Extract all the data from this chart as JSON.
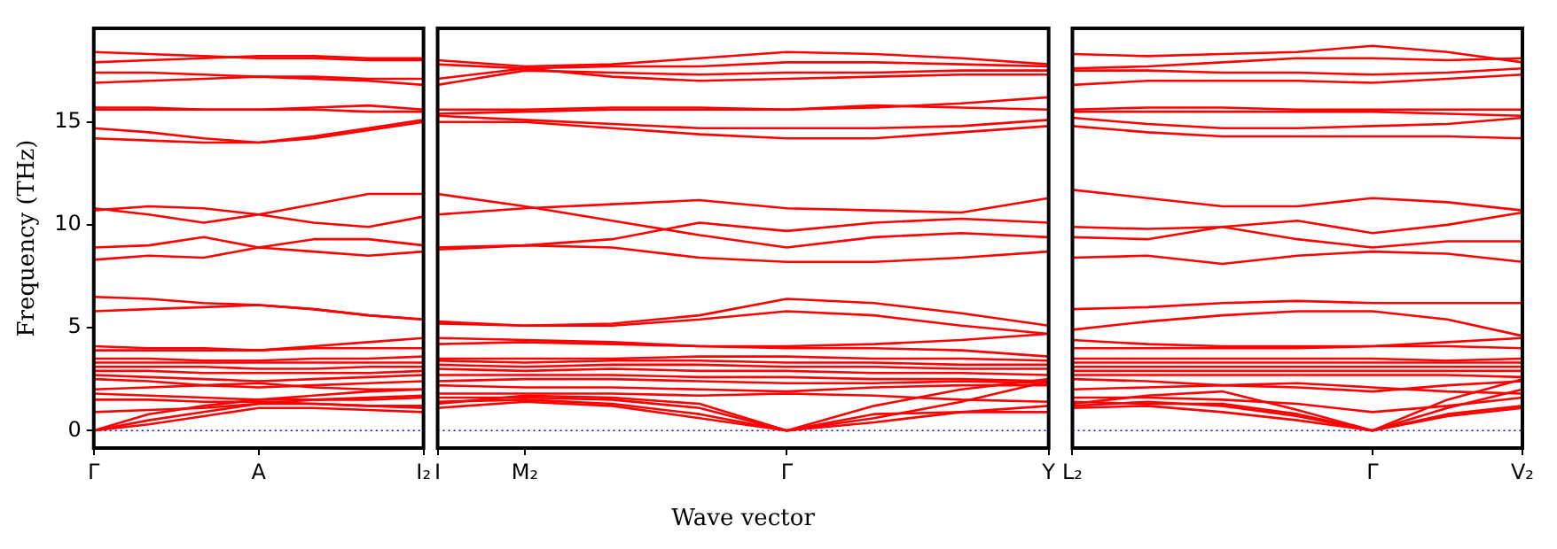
{
  "chart_data": [
    {
      "type": "line",
      "ylabel": "Frequency (THz)",
      "categories": [
        "Γ",
        null,
        null,
        "A",
        null,
        null,
        "I₂"
      ],
      "ylim": [
        -0.85,
        19.55
      ],
      "yticks": [
        0,
        5,
        10,
        15
      ],
      "grid": false,
      "color": "#ff0000",
      "line_style": "solid",
      "ref_lines": [
        {
          "axis": "y",
          "value": 0,
          "color": "#0000ff",
          "line_style": "dotted"
        }
      ],
      "series": [
        {
          "values": [
            18.4,
            18.3,
            18.2,
            18.1,
            18.1,
            18.0,
            18.0
          ]
        },
        {
          "values": [
            17.9,
            18.0,
            18.1,
            18.2,
            18.2,
            18.1,
            18.1
          ]
        },
        {
          "values": [
            17.4,
            17.4,
            17.3,
            17.2,
            17.2,
            17.1,
            17.1
          ]
        },
        {
          "values": [
            16.9,
            17.0,
            17.1,
            17.2,
            17.1,
            17.0,
            16.8
          ]
        },
        {
          "values": [
            15.7,
            15.7,
            15.6,
            15.6,
            15.7,
            15.8,
            15.6
          ]
        },
        {
          "values": [
            15.6,
            15.6,
            15.6,
            15.6,
            15.6,
            15.5,
            15.5
          ]
        },
        {
          "values": [
            14.7,
            14.5,
            14.2,
            14.0,
            14.3,
            14.7,
            15.1
          ]
        },
        {
          "values": [
            14.2,
            14.1,
            14.0,
            14.0,
            14.2,
            14.6,
            15.0
          ]
        },
        {
          "values": [
            10.8,
            10.5,
            10.1,
            10.5,
            11.0,
            11.5,
            11.5
          ]
        },
        {
          "values": [
            10.7,
            10.9,
            10.8,
            10.5,
            10.1,
            9.9,
            10.4
          ]
        },
        {
          "values": [
            8.9,
            9.0,
            9.4,
            8.9,
            9.3,
            9.3,
            9.0
          ]
        },
        {
          "values": [
            8.3,
            8.5,
            8.4,
            8.9,
            8.7,
            8.5,
            8.7
          ]
        },
        {
          "values": [
            6.5,
            6.4,
            6.2,
            6.1,
            5.9,
            5.6,
            5.4
          ]
        },
        {
          "values": [
            5.8,
            5.9,
            6.0,
            6.1,
            5.9,
            5.6,
            5.4
          ]
        },
        {
          "values": [
            4.1,
            4.0,
            4.0,
            3.9,
            4.1,
            4.3,
            4.5
          ]
        },
        {
          "values": [
            3.9,
            3.9,
            3.9,
            3.9,
            4.0,
            4.0,
            4.0
          ]
        },
        {
          "values": [
            3.5,
            3.5,
            3.4,
            3.4,
            3.5,
            3.5,
            3.6
          ]
        },
        {
          "values": [
            3.3,
            3.3,
            3.3,
            3.3,
            3.3,
            3.3,
            3.3
          ]
        },
        {
          "values": [
            3.1,
            3.1,
            3.1,
            3.0,
            3.0,
            3.1,
            3.1
          ]
        },
        {
          "values": [
            2.9,
            2.9,
            2.8,
            2.8,
            2.8,
            2.8,
            2.9
          ]
        },
        {
          "values": [
            2.7,
            2.6,
            2.5,
            2.4,
            2.5,
            2.6,
            2.7
          ]
        },
        {
          "values": [
            2.5,
            2.4,
            2.2,
            2.1,
            2.2,
            2.3,
            2.4
          ]
        },
        {
          "values": [
            2.0,
            2.1,
            2.2,
            2.3,
            2.1,
            2.0,
            2.0
          ]
        },
        {
          "values": [
            1.8,
            1.7,
            1.6,
            1.5,
            1.5,
            1.5,
            1.6
          ]
        },
        {
          "values": [
            1.5,
            1.5,
            1.4,
            1.4,
            1.3,
            1.2,
            1.2
          ]
        },
        {
          "values": [
            0.9,
            1.0,
            1.1,
            1.3,
            1.5,
            1.6,
            1.7
          ]
        },
        {
          "values": [
            0,
            0.8,
            1.2,
            1.5,
            1.7,
            1.9,
            2.0
          ]
        },
        {
          "values": [
            0,
            0.5,
            0.9,
            1.3,
            1.3,
            1.2,
            1.1
          ]
        },
        {
          "values": [
            0,
            0.3,
            0.7,
            1.1,
            1.1,
            1.0,
            0.9
          ]
        }
      ]
    },
    {
      "type": "line",
      "xlabel": "Wave vector",
      "categories": [
        "I",
        "M₂",
        null,
        null,
        "Γ",
        null,
        null,
        "Y"
      ],
      "ylim": [
        -0.85,
        19.55
      ],
      "yticks": [
        0,
        5,
        10,
        15
      ],
      "tick_labels": "x",
      "grid": false,
      "color": "#ff0000",
      "line_style": "solid",
      "ref_lines": [
        {
          "axis": "y",
          "value": 0,
          "color": "#0000ff",
          "line_style": "dotted"
        }
      ],
      "series": [
        {
          "values": [
            18.0,
            17.7,
            17.8,
            18.1,
            18.4,
            18.3,
            18.1,
            17.8
          ]
        },
        {
          "values": [
            17.8,
            17.6,
            17.7,
            17.7,
            17.9,
            17.9,
            17.8,
            17.7
          ]
        },
        {
          "values": [
            16.8,
            17.5,
            17.4,
            17.3,
            17.4,
            17.4,
            17.5,
            17.5
          ]
        },
        {
          "values": [
            17.1,
            17.6,
            17.2,
            17.0,
            17.1,
            17.2,
            17.3,
            17.3
          ]
        },
        {
          "values": [
            15.6,
            15.6,
            15.7,
            15.7,
            15.6,
            15.7,
            15.9,
            16.2
          ]
        },
        {
          "values": [
            15.4,
            15.5,
            15.6,
            15.6,
            15.6,
            15.8,
            15.7,
            15.6
          ]
        },
        {
          "values": [
            15.3,
            15.1,
            14.9,
            14.7,
            14.7,
            14.7,
            14.8,
            15.1
          ]
        },
        {
          "values": [
            15.0,
            15.0,
            14.7,
            14.4,
            14.2,
            14.2,
            14.5,
            14.8
          ]
        },
        {
          "values": [
            11.5,
            10.9,
            10.2,
            9.5,
            8.9,
            9.4,
            9.6,
            9.4
          ]
        },
        {
          "values": [
            10.5,
            10.8,
            11.0,
            11.2,
            10.8,
            10.7,
            10.6,
            11.3
          ]
        },
        {
          "values": [
            8.9,
            9.0,
            9.3,
            10.1,
            9.7,
            10.1,
            10.3,
            10.1
          ]
        },
        {
          "values": [
            8.8,
            9.0,
            8.9,
            8.4,
            8.2,
            8.2,
            8.4,
            8.7
          ]
        },
        {
          "values": [
            5.3,
            5.1,
            5.2,
            5.6,
            6.4,
            6.2,
            5.7,
            5.1
          ]
        },
        {
          "values": [
            5.2,
            5.1,
            5.1,
            5.4,
            5.8,
            5.6,
            5.1,
            4.7
          ]
        },
        {
          "values": [
            4.5,
            4.4,
            4.3,
            4.1,
            4.1,
            4.2,
            4.4,
            4.7
          ]
        },
        {
          "values": [
            4.2,
            4.3,
            4.2,
            4.1,
            4.0,
            4.0,
            3.9,
            3.6
          ]
        },
        {
          "values": [
            3.5,
            3.5,
            3.5,
            3.6,
            3.6,
            3.5,
            3.5,
            3.4
          ]
        },
        {
          "values": [
            3.4,
            3.3,
            3.4,
            3.4,
            3.3,
            3.3,
            3.2,
            3.2
          ]
        },
        {
          "values": [
            3.2,
            3.1,
            3.2,
            3.2,
            3.1,
            3.1,
            3.0,
            3.0
          ]
        },
        {
          "values": [
            3.0,
            2.9,
            3.0,
            2.9,
            2.9,
            2.8,
            2.8,
            2.7
          ]
        },
        {
          "values": [
            2.7,
            2.7,
            2.7,
            2.6,
            2.6,
            2.5,
            2.5,
            2.4
          ]
        },
        {
          "values": [
            2.4,
            2.5,
            2.5,
            2.4,
            2.3,
            2.3,
            2.4,
            2.3
          ]
        },
        {
          "values": [
            2.2,
            2.1,
            2.1,
            2.0,
            1.9,
            2.1,
            2.2,
            2.2
          ]
        },
        {
          "values": [
            1.8,
            1.8,
            1.8,
            1.7,
            1.8,
            1.7,
            1.5,
            1.4
          ]
        },
        {
          "values": [
            1.3,
            1.7,
            1.6,
            1.3,
            0,
            0.8,
            0.9,
            0.9
          ]
        },
        {
          "values": [
            1.6,
            1.6,
            1.5,
            1.1,
            0,
            0.6,
            1.4,
            2.4
          ]
        },
        {
          "values": [
            1.4,
            1.5,
            1.3,
            0.8,
            0,
            0.4,
            0.9,
            1.2
          ]
        },
        {
          "values": [
            1.1,
            1.4,
            1.2,
            0.6,
            0,
            1.2,
            2.0,
            2.5
          ]
        }
      ]
    },
    {
      "type": "line",
      "categories": [
        "L₂",
        null,
        null,
        null,
        "Γ",
        null,
        "V₂"
      ],
      "ylim": [
        -0.85,
        19.55
      ],
      "yticks": [
        0,
        5,
        10,
        15
      ],
      "tick_labels": "x",
      "grid": false,
      "color": "#ff0000",
      "line_style": "solid",
      "ref_lines": [
        {
          "axis": "y",
          "value": 0,
          "color": "#0000ff",
          "line_style": "dotted"
        }
      ],
      "series": [
        {
          "values": [
            18.3,
            18.2,
            18.3,
            18.4,
            18.7,
            18.4,
            17.9
          ]
        },
        {
          "values": [
            17.6,
            17.7,
            17.9,
            18.1,
            18.1,
            18.0,
            18.1
          ]
        },
        {
          "values": [
            17.5,
            17.5,
            17.4,
            17.4,
            17.3,
            17.4,
            17.6
          ]
        },
        {
          "values": [
            16.8,
            17.0,
            17.0,
            17.0,
            16.9,
            17.1,
            17.3
          ]
        },
        {
          "values": [
            15.6,
            15.7,
            15.7,
            15.6,
            15.6,
            15.6,
            15.6
          ]
        },
        {
          "values": [
            15.5,
            15.5,
            15.5,
            15.5,
            15.5,
            15.4,
            15.3
          ]
        },
        {
          "values": [
            15.2,
            14.9,
            14.7,
            14.7,
            14.8,
            14.9,
            15.2
          ]
        },
        {
          "values": [
            14.8,
            14.5,
            14.3,
            14.3,
            14.3,
            14.3,
            14.2
          ]
        },
        {
          "values": [
            11.7,
            11.3,
            10.9,
            10.9,
            11.3,
            11.1,
            10.7
          ]
        },
        {
          "values": [
            9.9,
            9.8,
            9.9,
            10.2,
            9.6,
            10.0,
            10.6
          ]
        },
        {
          "values": [
            9.4,
            9.3,
            9.9,
            9.3,
            8.9,
            9.2,
            9.2
          ]
        },
        {
          "values": [
            8.4,
            8.5,
            8.1,
            8.5,
            8.7,
            8.6,
            8.2
          ]
        },
        {
          "values": [
            5.9,
            6.0,
            6.2,
            6.3,
            6.2,
            6.2,
            6.2
          ]
        },
        {
          "values": [
            4.9,
            5.3,
            5.6,
            5.8,
            5.8,
            5.4,
            4.6
          ]
        },
        {
          "values": [
            4.4,
            4.2,
            4.1,
            4.1,
            4.1,
            4.3,
            4.5
          ]
        },
        {
          "values": [
            4.0,
            4.0,
            4.0,
            4.0,
            4.1,
            4.1,
            4.0
          ]
        },
        {
          "values": [
            3.5,
            3.5,
            3.5,
            3.5,
            3.5,
            3.4,
            3.5
          ]
        },
        {
          "values": [
            3.3,
            3.3,
            3.3,
            3.3,
            3.3,
            3.3,
            3.3
          ]
        },
        {
          "values": [
            3.1,
            3.1,
            3.1,
            3.1,
            3.1,
            3.1,
            3.1
          ]
        },
        {
          "values": [
            2.9,
            2.9,
            2.9,
            2.9,
            2.9,
            2.9,
            2.9
          ]
        },
        {
          "values": [
            2.7,
            2.7,
            2.7,
            2.7,
            2.7,
            2.7,
            2.6
          ]
        },
        {
          "values": [
            2.5,
            2.4,
            2.2,
            2.1,
            1.9,
            2.2,
            2.4
          ]
        },
        {
          "values": [
            2.0,
            2.1,
            2.2,
            2.3,
            2.1,
            1.9,
            1.8
          ]
        },
        {
          "values": [
            1.6,
            1.6,
            1.5,
            1.3,
            0.9,
            1.2,
            1.6
          ]
        },
        {
          "values": [
            1.4,
            1.3,
            1.3,
            0.8,
            0,
            0.8,
            1.2
          ]
        },
        {
          "values": [
            1.3,
            1.7,
            1.9,
            1.0,
            0,
            1.5,
            2.5
          ]
        },
        {
          "values": [
            1.1,
            1.2,
            0.9,
            0.5,
            0,
            0.7,
            1.1
          ]
        },
        {
          "values": [
            1.2,
            1.4,
            1.2,
            0.7,
            0,
            1.1,
            2.0
          ]
        }
      ]
    }
  ]
}
